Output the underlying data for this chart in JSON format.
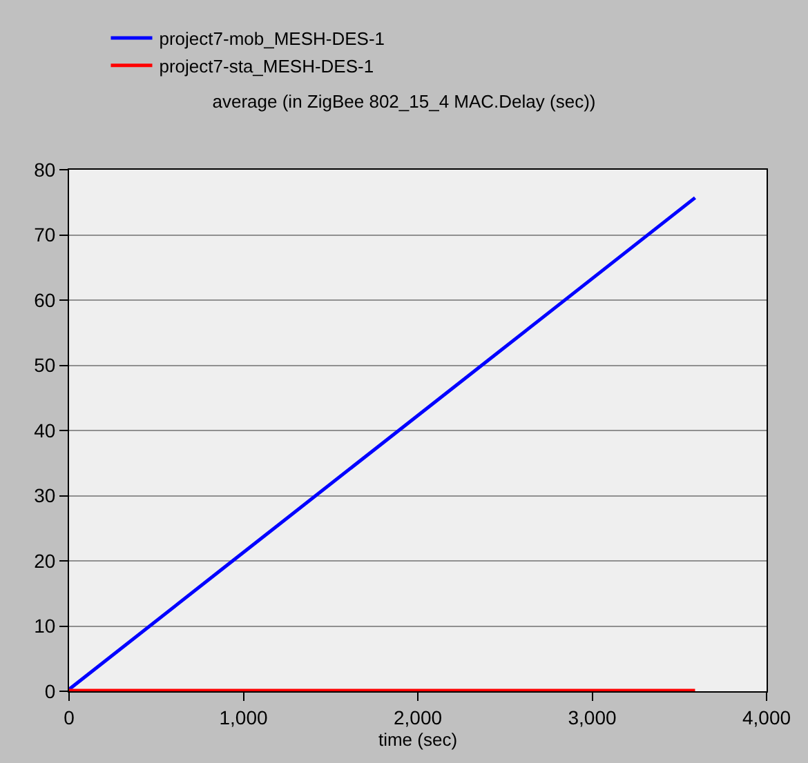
{
  "chart_data": {
    "type": "line",
    "title": "average (in ZigBee 802_15_4 MAC.Delay (sec))",
    "xlabel": "time (sec)",
    "x": [
      0,
      900,
      1800,
      2700,
      3590
    ],
    "series": [
      {
        "name": "project7-mob_MESH-DES-1",
        "color": "#0000ff",
        "values": [
          0.3,
          19.2,
          38.1,
          57.0,
          75.7
        ]
      },
      {
        "name": "project7-sta_MESH-DES-1",
        "color": "#ff0000",
        "values": [
          0.1,
          0.1,
          0.1,
          0.1,
          0.1
        ]
      }
    ],
    "xlim": [
      0,
      4000
    ],
    "xticks": [
      {
        "value": 0,
        "label": "0"
      },
      {
        "value": 1000,
        "label": "1,000"
      },
      {
        "value": 2000,
        "label": "2,000"
      },
      {
        "value": 3000,
        "label": "3,000"
      },
      {
        "value": 4000,
        "label": "4,000"
      }
    ],
    "ylim": [
      0,
      80
    ],
    "yticks": [
      0,
      10,
      20,
      30,
      40,
      50,
      60,
      70,
      80
    ],
    "grid": "y",
    "legend": "top left",
    "marker": "none",
    "line_style": "solid"
  }
}
